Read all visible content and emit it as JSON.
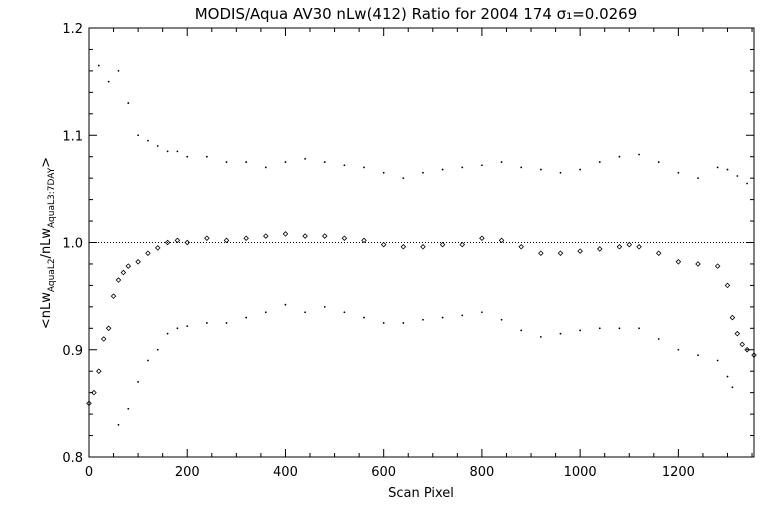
{
  "chart_data": {
    "type": "scatter",
    "title": "MODIS/Aqua AV30 nLw(412) Ratio for 2004 174 σ₁=0.0269",
    "xlabel": "Scan Pixel",
    "ylabel": "<nLw_AquaL2 / nLw_AquaL3:7DAY>",
    "ylabel_parts": {
      "lt": "<nLw",
      "sub1": "AquaL2",
      "mid": "/nLw",
      "sub2": "AquaL3:7DAY",
      "gt": ">"
    },
    "xlim": [
      0,
      1354
    ],
    "ylim": [
      0.8,
      1.2
    ],
    "xticks": [
      0,
      200,
      400,
      600,
      800,
      1000,
      1200
    ],
    "yticks": [
      0.8,
      0.9,
      1.0,
      1.1,
      1.2
    ],
    "ytick_labels": [
      "0.8",
      "0.9",
      "1.0",
      "1.1",
      "1.2"
    ],
    "reference_line": 1.0,
    "series": [
      {
        "marker": "diamond",
        "x": [
          0,
          10,
          20,
          30,
          40,
          50,
          60,
          70,
          80,
          100,
          120,
          140,
          160,
          180,
          200,
          240,
          280,
          320,
          360,
          400,
          440,
          480,
          520,
          560,
          600,
          640,
          680,
          720,
          760,
          800,
          840,
          880,
          920,
          960,
          1000,
          1040,
          1080,
          1100,
          1120,
          1160,
          1200,
          1240,
          1280,
          1300,
          1310,
          1320,
          1330,
          1340,
          1354
        ],
        "values": [
          0.85,
          0.86,
          0.88,
          0.91,
          0.92,
          0.95,
          0.965,
          0.972,
          0.978,
          0.982,
          0.99,
          0.995,
          1.0,
          1.002,
          1.0,
          1.004,
          1.002,
          1.004,
          1.006,
          1.008,
          1.006,
          1.006,
          1.004,
          1.002,
          0.998,
          0.996,
          0.996,
          0.998,
          0.998,
          1.004,
          1.002,
          0.996,
          0.99,
          0.99,
          0.992,
          0.994,
          0.996,
          0.998,
          0.996,
          0.99,
          0.982,
          0.98,
          0.978,
          0.96,
          0.93,
          0.915,
          0.905,
          0.9,
          0.895
        ]
      },
      {
        "marker": "dot",
        "x": [
          20,
          40,
          60,
          80,
          100,
          120,
          140,
          160,
          180,
          200,
          240,
          280,
          320,
          360,
          400,
          440,
          480,
          520,
          560,
          600,
          640,
          680,
          720,
          760,
          800,
          840,
          880,
          920,
          960,
          1000,
          1040,
          1080,
          1120,
          1160,
          1200,
          1240,
          1280,
          1300,
          1320,
          1340
        ],
        "values": [
          1.165,
          1.15,
          1.16,
          1.13,
          1.1,
          1.095,
          1.09,
          1.085,
          1.085,
          1.08,
          1.08,
          1.075,
          1.075,
          1.07,
          1.075,
          1.078,
          1.075,
          1.072,
          1.07,
          1.065,
          1.06,
          1.065,
          1.068,
          1.07,
          1.072,
          1.075,
          1.07,
          1.068,
          1.065,
          1.068,
          1.075,
          1.08,
          1.082,
          1.075,
          1.065,
          1.06,
          1.07,
          1.068,
          1.062,
          1.055
        ]
      },
      {
        "marker": "dot",
        "x": [
          60,
          80,
          100,
          120,
          140,
          160,
          180,
          200,
          240,
          280,
          320,
          360,
          400,
          440,
          480,
          520,
          560,
          600,
          640,
          680,
          720,
          760,
          800,
          840,
          880,
          920,
          960,
          1000,
          1040,
          1080,
          1120,
          1160,
          1200,
          1240,
          1280,
          1300,
          1310
        ],
        "values": [
          0.83,
          0.845,
          0.87,
          0.89,
          0.9,
          0.915,
          0.92,
          0.922,
          0.925,
          0.925,
          0.93,
          0.935,
          0.942,
          0.935,
          0.94,
          0.935,
          0.93,
          0.925,
          0.925,
          0.928,
          0.93,
          0.932,
          0.935,
          0.928,
          0.918,
          0.912,
          0.915,
          0.918,
          0.92,
          0.92,
          0.92,
          0.91,
          0.9,
          0.895,
          0.89,
          0.875,
          0.865
        ]
      }
    ]
  }
}
